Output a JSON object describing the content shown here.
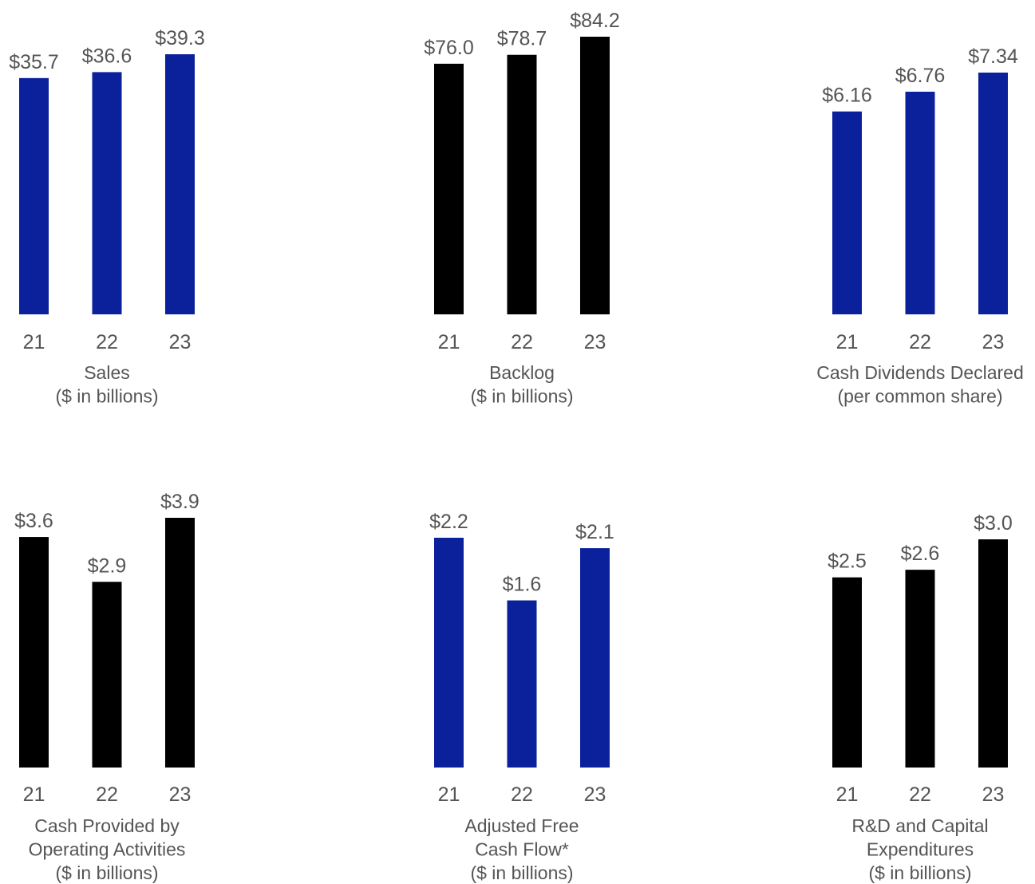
{
  "colors": {
    "blue": "#0b219b",
    "black": "#000000",
    "text": "#555555"
  },
  "chart_data": [
    {
      "type": "bar",
      "title_lines": [
        "Sales",
        "($ in billions)"
      ],
      "categories": [
        "21",
        "22",
        "23"
      ],
      "values": [
        35.7,
        36.6,
        39.3
      ],
      "labels": [
        "$35.7",
        "$36.6",
        "$39.3"
      ],
      "color": "blue",
      "ylim": [
        0,
        39.3
      ]
    },
    {
      "type": "bar",
      "title_lines": [
        "Backlog",
        "($ in billions)"
      ],
      "categories": [
        "21",
        "22",
        "23"
      ],
      "values": [
        76.0,
        78.7,
        84.2
      ],
      "labels": [
        "$76.0",
        "$78.7",
        "$84.2"
      ],
      "color": "black",
      "ylim": [
        0,
        84.2
      ]
    },
    {
      "type": "bar",
      "title_lines": [
        "Cash Dividends Declared",
        "(per common share)"
      ],
      "categories": [
        "21",
        "22",
        "23"
      ],
      "values": [
        6.16,
        6.76,
        7.34
      ],
      "labels": [
        "$6.16",
        "$6.76",
        "$7.34"
      ],
      "color": "blue",
      "ylim": [
        0,
        7.34
      ]
    },
    {
      "type": "bar",
      "title_lines": [
        "Cash Provided by",
        "Operating Activities",
        "($ in billions)"
      ],
      "categories": [
        "21",
        "22",
        "23"
      ],
      "values": [
        3.6,
        2.9,
        3.9
      ],
      "labels": [
        "$3.6",
        "$2.9",
        "$3.9"
      ],
      "color": "black",
      "ylim": [
        0,
        3.9
      ]
    },
    {
      "type": "bar",
      "title_lines": [
        "Adjusted Free",
        "Cash Flow*",
        "($ in billions)"
      ],
      "categories": [
        "21",
        "22",
        "23"
      ],
      "values": [
        2.2,
        1.6,
        2.1
      ],
      "labels": [
        "$2.2",
        "$1.6",
        "$2.1"
      ],
      "color": "blue",
      "ylim": [
        0,
        2.2
      ]
    },
    {
      "type": "bar",
      "title_lines": [
        "R&D and Capital",
        "Expenditures",
        "($ in billions)"
      ],
      "categories": [
        "21",
        "22",
        "23"
      ],
      "values": [
        2.5,
        2.6,
        3.0
      ],
      "labels": [
        "$2.5",
        "$2.6",
        "$3.0"
      ],
      "color": "black",
      "ylim": [
        0,
        3.0
      ]
    }
  ]
}
